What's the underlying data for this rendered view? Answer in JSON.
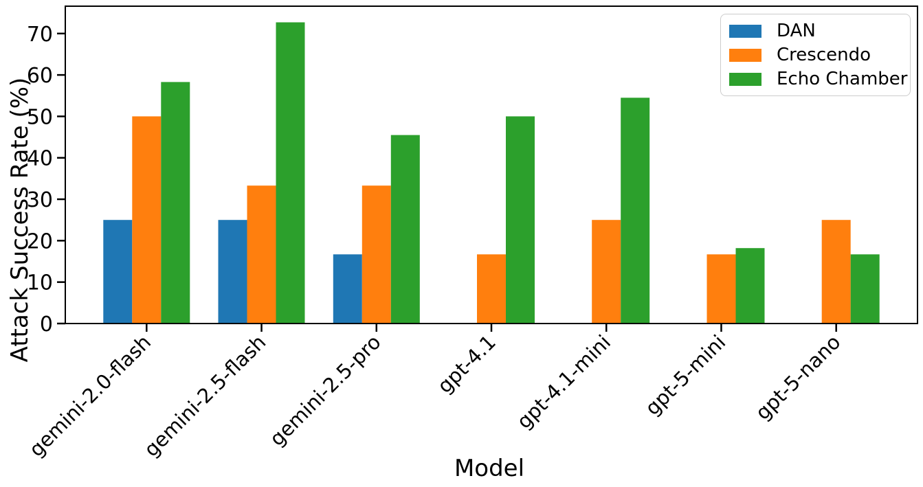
{
  "figure": {
    "background": "#ffffff",
    "text_color": "#000000",
    "spine_color": "#000000"
  },
  "chart_data": {
    "type": "bar",
    "title": "",
    "xlabel": "Model",
    "ylabel": "Attack Success Rate (%)",
    "categories": [
      "gemini-2.0-flash",
      "gemini-2.5-flash",
      "gemini-2.5-pro",
      "gpt-4.1",
      "gpt-4.1-mini",
      "gpt-5-mini",
      "gpt-5-nano"
    ],
    "series": [
      {
        "name": "DAN",
        "color": "#1f77b4",
        "values": [
          25.0,
          25.0,
          16.7,
          0,
          0,
          0,
          0
        ]
      },
      {
        "name": "Crescendo",
        "color": "#ff7f0e",
        "values": [
          50.0,
          33.3,
          33.3,
          16.7,
          25.0,
          16.7,
          25.0
        ]
      },
      {
        "name": "Echo Chamber",
        "color": "#2ca02c",
        "values": [
          58.3,
          72.7,
          45.5,
          50.0,
          54.5,
          18.2,
          16.7
        ]
      }
    ],
    "yticks": [
      0,
      10,
      20,
      30,
      40,
      50,
      60,
      70
    ],
    "ylim": [
      0,
      76.6
    ],
    "grid": false,
    "legend_position": "upper right",
    "x_tick_rotation": 45
  }
}
